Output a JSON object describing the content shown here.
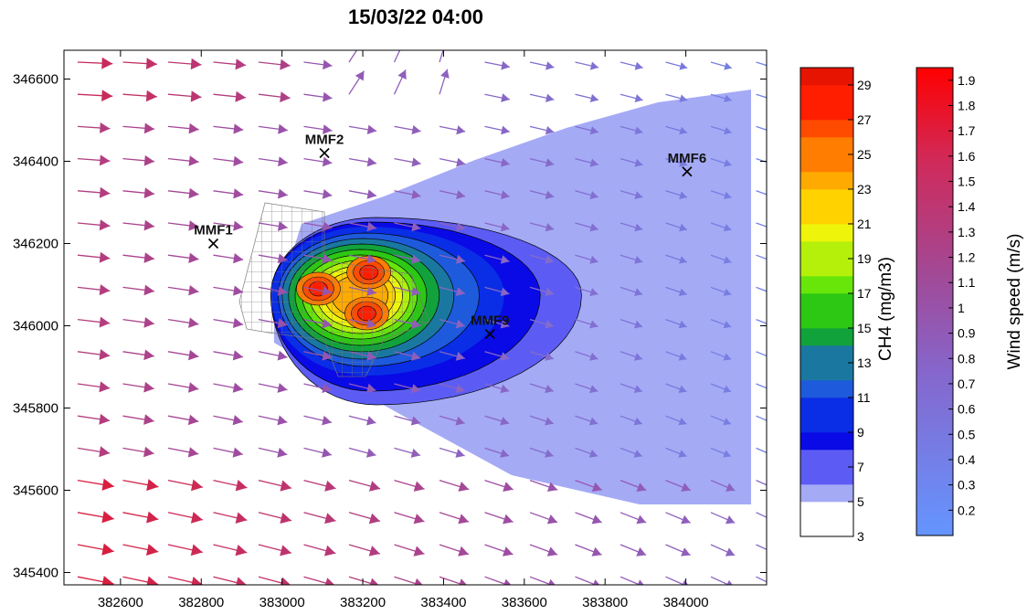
{
  "title": "15/03/22 04:00",
  "chart_data": {
    "type": "heatmap",
    "title": "15/03/22 04:00",
    "xlim": [
      382460,
      384200
    ],
    "ylim": [
      345370,
      346670
    ],
    "x_ticks": [
      382600,
      382800,
      383000,
      383200,
      383400,
      383600,
      383800,
      384000
    ],
    "y_ticks": [
      345400,
      345600,
      345800,
      346000,
      346200,
      346400,
      346600
    ],
    "grid": false,
    "stations": [
      {
        "name": "MMF1",
        "x": 382830,
        "y": 346200
      },
      {
        "name": "MMF2",
        "x": 383105,
        "y": 346420
      },
      {
        "name": "MMF6",
        "x": 384003,
        "y": 346375
      },
      {
        "name": "MMF9",
        "x": 383515,
        "y": 345980
      }
    ],
    "ch4_plume": {
      "label": "CH4 (mg/m3)",
      "levels": [
        3,
        5,
        7,
        9,
        11,
        13,
        15,
        17,
        19,
        21,
        23,
        25,
        27,
        29
      ],
      "contour_colors": [
        "#ffffff",
        "#a5aaf5",
        "#5c5cf5",
        "#0a0ae6",
        "#0a2ee6",
        "#1e5adc",
        "#1a78a0",
        "#12a23c",
        "#2dc814",
        "#68e60a",
        "#b4f00a",
        "#eef50a",
        "#ffd200",
        "#ffaa00",
        "#ff7d00",
        "#ff4b00",
        "#ff1e00",
        "#e61400"
      ],
      "sources": [
        {
          "x": 383090,
          "y": 346090,
          "peak": 27
        },
        {
          "x": 383215,
          "y": 346130,
          "peak": 26
        },
        {
          "x": 383210,
          "y": 346030,
          "peak": 26
        }
      ]
    },
    "wind": {
      "label": "Wind speed (m/s)",
      "range": [
        0.1,
        1.95
      ],
      "ticks": [
        0.2,
        0.3,
        0.4,
        0.5,
        0.6,
        0.7,
        0.8,
        0.9,
        1,
        1.1,
        1.2,
        1.3,
        1.4,
        1.5,
        1.6,
        1.7,
        1.8,
        1.9
      ],
      "low_color": "#6495ff",
      "mid_color": "#9a50a8",
      "high_color": "#ff0000"
    }
  }
}
